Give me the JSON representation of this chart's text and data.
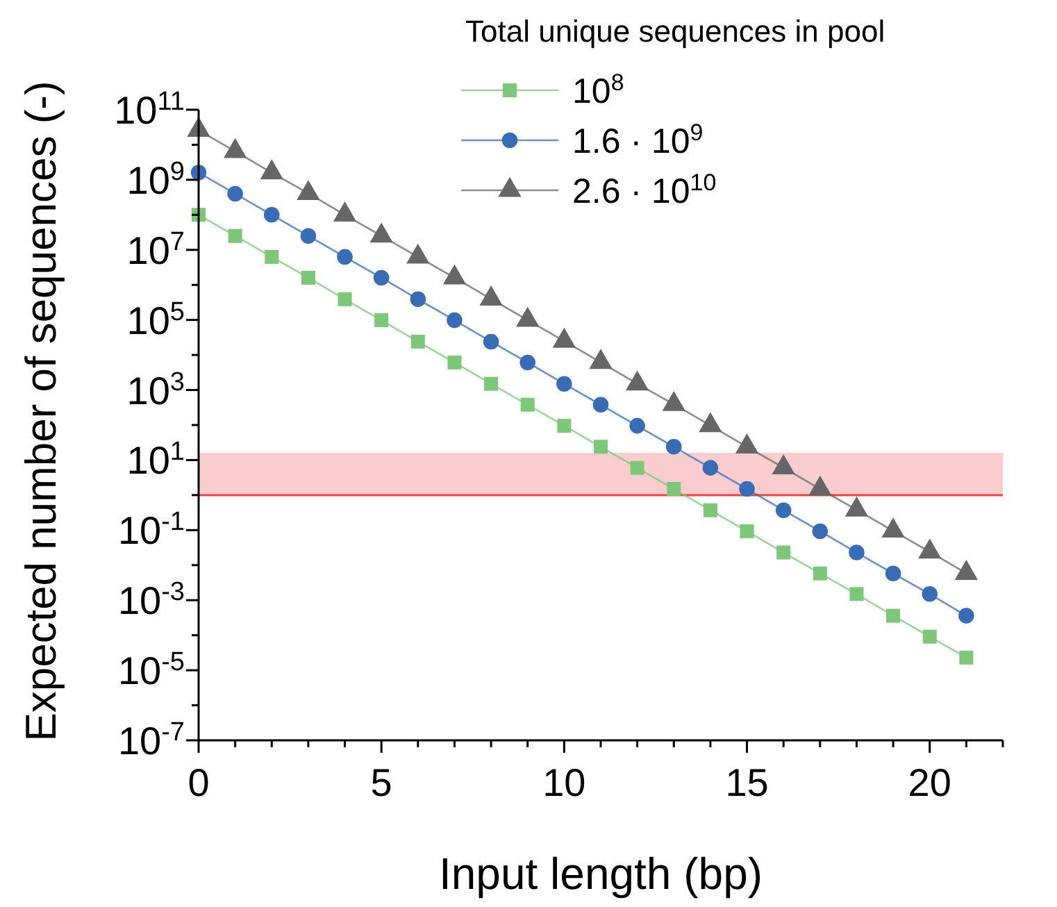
{
  "chart_data": {
    "type": "line",
    "xlabel": "Input length (bp)",
    "ylabel": "Expected number of sequences (-)",
    "legend_title": "Total unique sequences in pool",
    "legend": "top right",
    "log": true,
    "grid": false,
    "line_style": "solid",
    "x": [
      0,
      1,
      2,
      3,
      4,
      5,
      6,
      7,
      8,
      9,
      10,
      11,
      12,
      13,
      14,
      15,
      16,
      17,
      18,
      19,
      20,
      21
    ],
    "xlim": [
      0,
      22
    ],
    "xticks": [
      0,
      {
        "value": 1,
        "label": null
      },
      {
        "value": 2,
        "label": null
      },
      {
        "value": 3,
        "label": null
      },
      {
        "value": 4,
        "label": null
      },
      5,
      {
        "value": 6,
        "label": null
      },
      {
        "value": 7,
        "label": null
      },
      {
        "value": 8,
        "label": null
      },
      {
        "value": 9,
        "label": null
      },
      10,
      {
        "value": 11,
        "label": null
      },
      {
        "value": 12,
        "label": null
      },
      {
        "value": 13,
        "label": null
      },
      {
        "value": 14,
        "label": null
      },
      15,
      {
        "value": 16,
        "label": null
      },
      {
        "value": 17,
        "label": null
      },
      {
        "value": 18,
        "label": null
      },
      {
        "value": 19,
        "label": null
      },
      20,
      {
        "value": 21,
        "label": null
      },
      {
        "value": 22,
        "label": null
      }
    ],
    "ylim": [
      1e-07,
      100000000000.0
    ],
    "yticks": [
      {
        "value": 1e-07,
        "label": "10$^{-7}$"
      },
      {
        "value": 1e-06,
        "label": null
      },
      {
        "value": 1e-05,
        "label": "10$^{-5}$"
      },
      {
        "value": 0.0001,
        "label": null
      },
      {
        "value": 0.001,
        "label": "10$^{-3}$"
      },
      {
        "value": 0.01,
        "label": null
      },
      {
        "value": 0.1,
        "label": "10$^{-1}$"
      },
      {
        "value": 1,
        "label": null
      },
      {
        "value": 10,
        "label": "10$^{1}$"
      },
      {
        "value": 100,
        "label": null
      },
      {
        "value": 1000.0,
        "label": "10$^{3}$"
      },
      {
        "value": 10000.0,
        "label": null
      },
      {
        "value": 100000.0,
        "label": "10$^{5}$"
      },
      {
        "value": 1000000.0,
        "label": null
      },
      {
        "value": 10000000.0,
        "label": "10$^{7}$"
      },
      {
        "value": 100000000.0,
        "label": null
      },
      {
        "value": 1000000000.0,
        "label": "10$^{9}$"
      },
      {
        "value": 10000000000.0,
        "label": null
      },
      {
        "value": 100000000000.0,
        "label": "10$^{11}$"
      }
    ],
    "bands": [
      {
        "axis": "y",
        "from": 1,
        "to": 16,
        "color": "#f8c8cb"
      }
    ],
    "ref_lines": [
      {
        "axis": "y",
        "value": 1,
        "color": "#ee4444"
      }
    ],
    "series": [
      {
        "name": "10$^{8}$",
        "color": "#7dc67a",
        "marker": "square",
        "values": [
          100000000.0,
          25000000.0,
          6300000.0,
          1600000.0,
          390000.0,
          98000.0,
          24000.0,
          6100.0,
          1500.0,
          380.0,
          95,
          24,
          6.0,
          1.5,
          0.37,
          0.093,
          0.023,
          0.0058,
          0.0015,
          0.00036,
          9.1e-05,
          2.3e-05
        ]
      },
      {
        "name": "1.6 · 10$^{9}$",
        "color": "#3a6bb5",
        "marker": "circle",
        "values": [
          1600000000.0,
          400000000.0,
          100000000.0,
          25000000.0,
          6300000.0,
          1600000.0,
          390000.0,
          98000.0,
          24000.0,
          6100.0,
          1500.0,
          380.0,
          95,
          24,
          6.0,
          1.5,
          0.37,
          0.093,
          0.023,
          0.0058,
          0.0015,
          0.00036
        ]
      },
      {
        "name": "2.6 · 10$^{10}$",
        "color": "#666666",
        "marker": "triangle",
        "values": [
          26000000000.0,
          6500000000.0,
          1600000000.0,
          410000000.0,
          100000000.0,
          25000000.0,
          6300000.0,
          1600000.0,
          400000.0,
          99000.0,
          25000.0,
          6200.0,
          1500.0,
          390.0,
          97,
          24,
          6.1,
          1.5,
          0.38,
          0.095,
          0.024,
          0.0059
        ]
      }
    ]
  }
}
